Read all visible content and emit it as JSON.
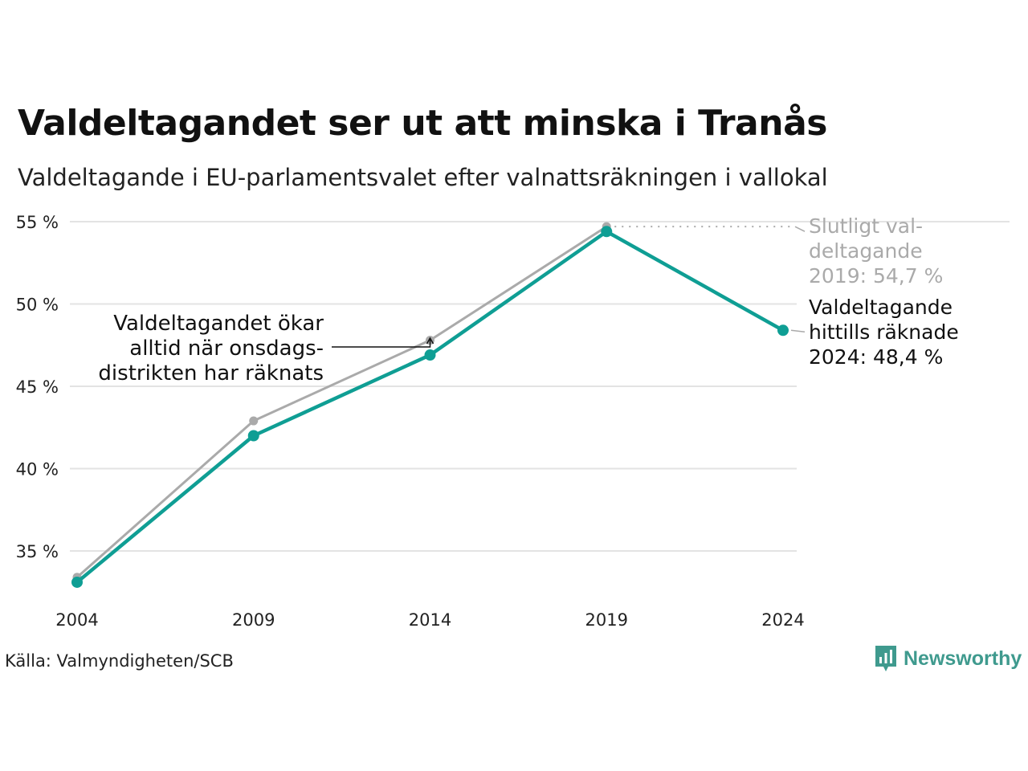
{
  "title": "Valdeltagandet ser ut att minska i Tranås",
  "subtitle": "Valdeltagande i EU-parlamentsvalet efter valnattsräkningen i vallokal",
  "source": "Källa: Valmyndigheten/SCB",
  "brand": {
    "name": "Newsworthy",
    "color": "#3f9a8e"
  },
  "chart_data": {
    "type": "line",
    "x": [
      2004,
      2009,
      2014,
      2019,
      2024
    ],
    "x_tick_labels": [
      "2004",
      "2009",
      "2014",
      "2019",
      "2024"
    ],
    "y_ticks": [
      35,
      40,
      45,
      50,
      55
    ],
    "y_tick_labels": [
      "35 %",
      "40 %",
      "45 %",
      "50 %",
      "55 %"
    ],
    "ylim": [
      32.5,
      55.3
    ],
    "grid": true,
    "series": [
      {
        "key": "final",
        "color": "#aaaaaa",
        "values": [
          33.4,
          42.9,
          47.8,
          54.7,
          null
        ]
      },
      {
        "key": "election_night",
        "color": "#0f9e94",
        "values": [
          33.1,
          42.0,
          46.9,
          54.4,
          48.4
        ]
      }
    ],
    "annotations": {
      "final_label": [
        "Slutligt val-",
        "deltagande",
        "2019: 54,7 %"
      ],
      "current_label": [
        "Valdeltagande",
        "hittills räknade",
        "2024: 48,4 %"
      ],
      "wednesday_note": [
        "Valdeltagandet ökar",
        "alltid när onsdags-",
        "distrikten har räknats"
      ]
    },
    "annotation_colors": {
      "final": "#aaaaaa",
      "current": "#111111",
      "note": "#111111"
    }
  }
}
